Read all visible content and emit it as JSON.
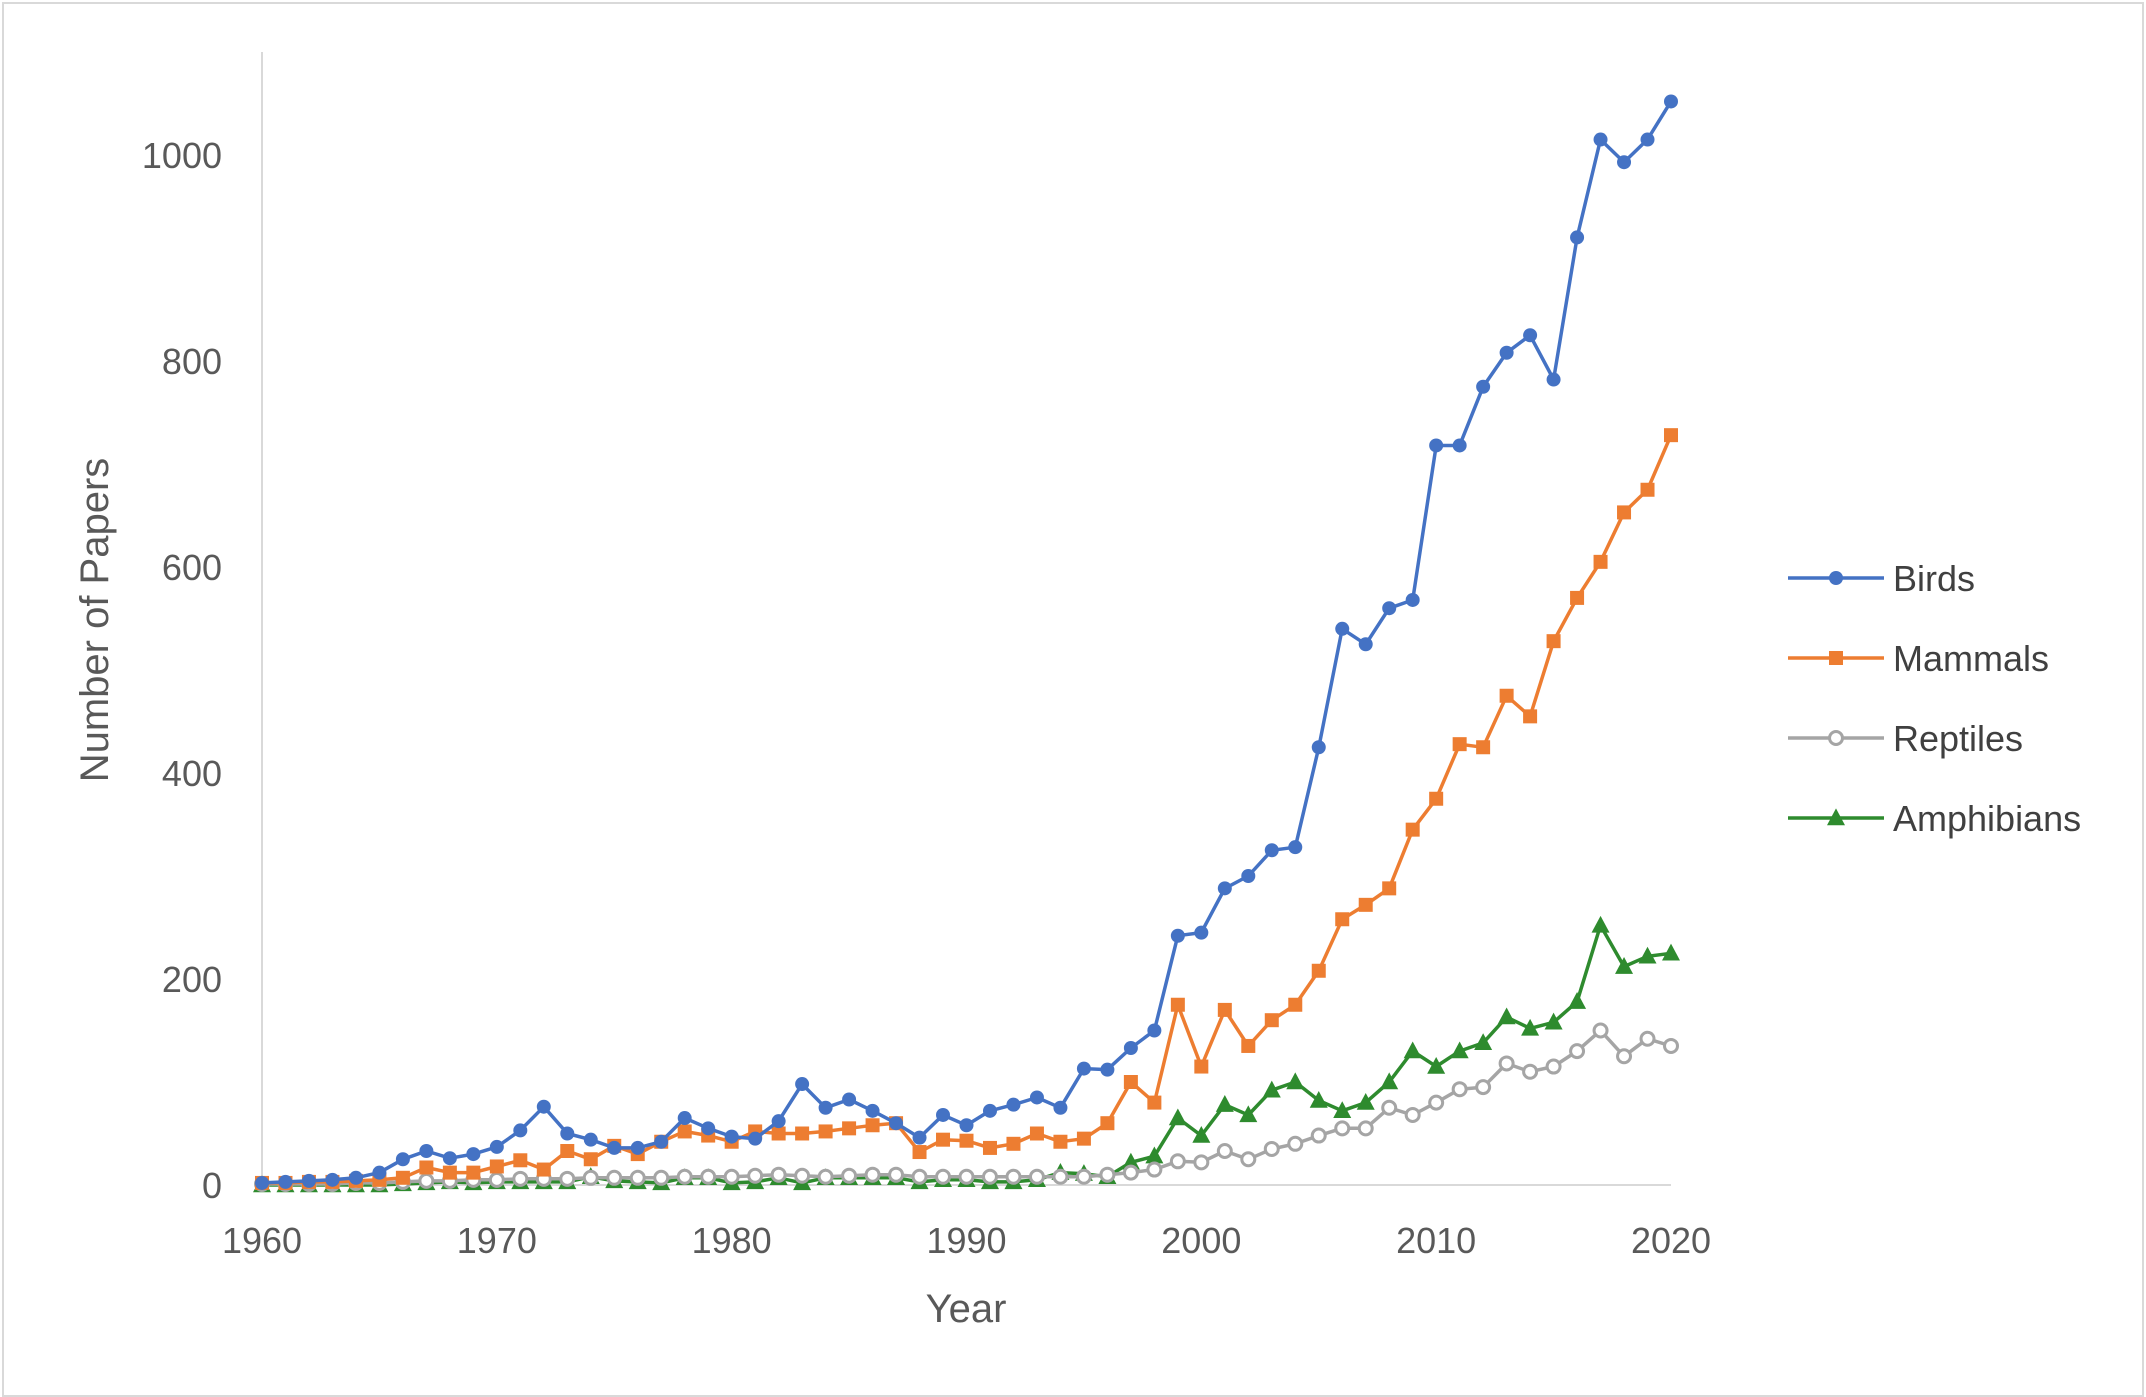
{
  "chart_data": {
    "type": "line",
    "title": "",
    "xlabel": "Year",
    "ylabel": "Number of Papers",
    "xlim": [
      1960,
      2020
    ],
    "ylim": [
      0,
      1100
    ],
    "xticks": [
      "1960",
      "1970",
      "1980",
      "1990",
      "2000",
      "2010",
      "2020"
    ],
    "yticks": [
      "0",
      "200",
      "400",
      "600",
      "800",
      "1000"
    ],
    "grid": false,
    "legend_position": "right",
    "x": [
      1960,
      1961,
      1962,
      1963,
      1964,
      1965,
      1966,
      1967,
      1968,
      1969,
      1970,
      1971,
      1972,
      1973,
      1974,
      1975,
      1976,
      1977,
      1978,
      1979,
      1980,
      1981,
      1982,
      1983,
      1984,
      1985,
      1986,
      1987,
      1988,
      1989,
      1990,
      1991,
      1992,
      1993,
      1994,
      1995,
      1996,
      1997,
      1998,
      1999,
      2000,
      2001,
      2002,
      2003,
      2004,
      2005,
      2006,
      2007,
      2008,
      2009,
      2010,
      2011,
      2012,
      2013,
      2014,
      2015,
      2016,
      2017,
      2018,
      2019,
      2020
    ],
    "series": [
      {
        "name": "Birds",
        "color": "#4472C4",
        "marker": "circle",
        "values": [
          2,
          3,
          4,
          5,
          7,
          12,
          25,
          33,
          26,
          30,
          37,
          53,
          76,
          50,
          44,
          36,
          36,
          42,
          65,
          55,
          47,
          45,
          62,
          98,
          75,
          83,
          72,
          60,
          46,
          68,
          58,
          72,
          78,
          85,
          75,
          113,
          112,
          133,
          150,
          242,
          245,
          288,
          300,
          325,
          328,
          425,
          540,
          525,
          560,
          568,
          718,
          718,
          775,
          808,
          825,
          782,
          920,
          1015,
          993,
          1015,
          1052
        ]
      },
      {
        "name": "Mammals",
        "color": "#ED7D31",
        "marker": "square",
        "values": [
          2,
          2,
          3,
          3,
          4,
          5,
          7,
          17,
          12,
          12,
          18,
          24,
          15,
          33,
          25,
          38,
          30,
          42,
          52,
          48,
          42,
          52,
          50,
          50,
          52,
          55,
          58,
          60,
          32,
          44,
          43,
          36,
          40,
          50,
          42,
          45,
          60,
          100,
          80,
          175,
          115,
          170,
          135,
          160,
          175,
          208,
          258,
          272,
          288,
          345,
          375,
          428,
          425,
          475,
          455,
          528,
          570,
          605,
          653,
          675,
          728
        ]
      },
      {
        "name": "Reptiles",
        "color": "#A5A5A5",
        "marker": "open-circle",
        "values": [
          1,
          1,
          1,
          1,
          2,
          2,
          3,
          4,
          4,
          5,
          5,
          6,
          6,
          6,
          7,
          7,
          7,
          7,
          8,
          8,
          8,
          9,
          10,
          9,
          8,
          9,
          10,
          10,
          8,
          8,
          8,
          8,
          8,
          8,
          8,
          8,
          10,
          12,
          15,
          23,
          22,
          33,
          25,
          35,
          40,
          48,
          55,
          55,
          75,
          68,
          80,
          93,
          95,
          118,
          110,
          115,
          130,
          150,
          125,
          142,
          135
        ]
      },
      {
        "name": "Amphibians",
        "color": "#2E8B2E",
        "marker": "triangle",
        "values": [
          0,
          0,
          0,
          0,
          0,
          0,
          1,
          2,
          3,
          2,
          3,
          3,
          3,
          3,
          8,
          4,
          3,
          2,
          7,
          7,
          2,
          3,
          7,
          2,
          7,
          7,
          7,
          7,
          3,
          5,
          5,
          3,
          3,
          5,
          12,
          11,
          8,
          22,
          28,
          65,
          48,
          78,
          68,
          92,
          100,
          82,
          72,
          80,
          100,
          130,
          115,
          130,
          138,
          163,
          152,
          158,
          178,
          252,
          212,
          222,
          225
        ]
      }
    ]
  }
}
